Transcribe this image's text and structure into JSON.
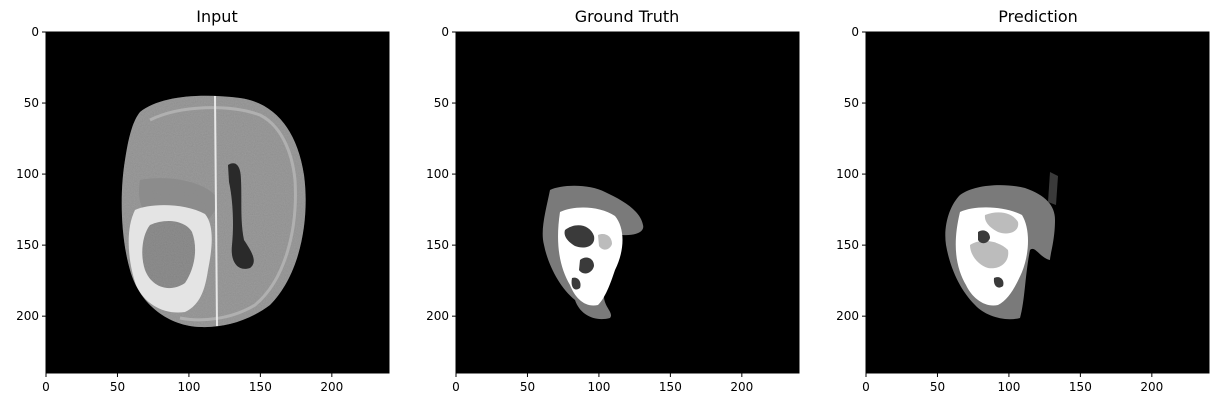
{
  "figure": {
    "panels": [
      {
        "id": "input",
        "title": "Input",
        "image": "input-mri-slice"
      },
      {
        "id": "ground-truth",
        "title": "Ground Truth",
        "image": "ground-truth-segmentation"
      },
      {
        "id": "prediction",
        "title": "Prediction",
        "image": "predicted-segmentation"
      }
    ],
    "x_ticks": [
      "0",
      "50",
      "100",
      "150",
      "200"
    ],
    "y_ticks": [
      "0",
      "50",
      "100",
      "150",
      "200"
    ],
    "image_extent": [
      0,
      240
    ],
    "colors": {
      "background": "#000000",
      "tissue_gray": "#9a9a9a",
      "edema": "#7a7a7a",
      "enhancing": "#ffffff",
      "necrosis": "#3a3a3a"
    }
  }
}
